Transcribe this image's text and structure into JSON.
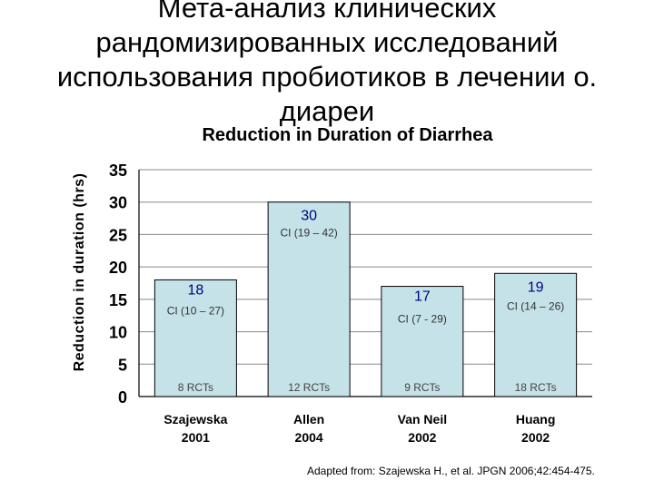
{
  "slide": {
    "title_lines": [
      "Мета-анализ клинических",
      "рандомизированных исследований",
      "использования пробиотиков в лечении о.",
      "диареи"
    ],
    "source": "Adapted from: Szajewska H., et al. JPGN 2006;42:454-475."
  },
  "chart_data": {
    "type": "bar",
    "title": "Reduction in Duration of Diarrhea",
    "xlabel": "",
    "ylabel": "Reduction in duration (hrs)",
    "ylim": [
      0,
      35
    ],
    "yticks": [
      "0",
      "5",
      "10",
      "15",
      "20",
      "25",
      "30",
      "35"
    ],
    "grid": true,
    "bar_color": "#c5e2e8",
    "categories": [
      {
        "name": "Szajewska",
        "year": "2001"
      },
      {
        "name": "Allen",
        "year": "2004"
      },
      {
        "name": "Van Neil",
        "year": "2002"
      },
      {
        "name": "Huang",
        "year": "2002"
      }
    ],
    "values": [
      18,
      30,
      17,
      19
    ],
    "value_labels": [
      "18",
      "30",
      "17",
      "19"
    ],
    "ci_labels": [
      "CI (10 – 27)",
      "CI (19 – 42)",
      "CI (7 - 29)",
      "CI (14 – 26)"
    ],
    "rct_labels": [
      "8 RCTs",
      "12 RCTs",
      "9 RCTs",
      "18 RCTs"
    ]
  }
}
